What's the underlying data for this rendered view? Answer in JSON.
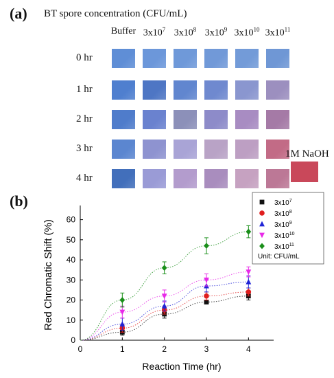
{
  "panel_a": {
    "label": "(a)",
    "title": "BT spore concentration (CFU/mL)",
    "columns": [
      {
        "base": "Buffer",
        "exp": ""
      },
      {
        "base": "3x10",
        "exp": "7"
      },
      {
        "base": "3x10",
        "exp": "8"
      },
      {
        "base": "3x10",
        "exp": "9"
      },
      {
        "base": "3x10",
        "exp": "10"
      },
      {
        "base": "3x10",
        "exp": "11"
      }
    ],
    "rows": [
      {
        "label": "0 hr",
        "colors": [
          "#5f8ed6",
          "#6c97da",
          "#6f99d9",
          "#7199d8",
          "#739bd8",
          "#6f97d5"
        ]
      },
      {
        "label": "1 hr",
        "colors": [
          "#4f7fcf",
          "#4e76c4",
          "#6186cf",
          "#6f89cf",
          "#8a96cf",
          "#9c8fbf"
        ]
      },
      {
        "label": "2 hr",
        "colors": [
          "#4f7ccb",
          "#6a82cf",
          "#8c90b9",
          "#8d8bc9",
          "#a88cc2",
          "#a57aa6"
        ]
      },
      {
        "label": "3 hr",
        "colors": [
          "#5b86d0",
          "#8e93d0",
          "#a9a4d6",
          "#b9a3c6",
          "#bd9fc3",
          "#c26b86"
        ]
      },
      {
        "label": "4 hr",
        "colors": [
          "#426fbb",
          "#9a9bd6",
          "#b39ccd",
          "#a98dbe",
          "#c6a2c1",
          "#bc7896"
        ]
      }
    ],
    "naoh": {
      "label": "1M NaOH",
      "color": "#c9485a"
    }
  },
  "panel_b": {
    "label": "(b)"
  },
  "chart_data": {
    "type": "scatter",
    "xlabel": "Reaction Time (hr)",
    "ylabel": "Red Chromatic Shift (%)",
    "xlim": [
      0,
      4.5
    ],
    "ylim": [
      0,
      65
    ],
    "xticks": [
      0,
      1,
      2,
      3,
      4
    ],
    "yticks": [
      0,
      10,
      20,
      30,
      40,
      50,
      60
    ],
    "grid": false,
    "legend_position": "top-right",
    "legend_note": "Unit: CFU/mL",
    "x": [
      0,
      1,
      2,
      3,
      4
    ],
    "series": [
      {
        "name": "3x10^7",
        "base": "3x10",
        "exp": "7",
        "marker": "square",
        "color": "#111111",
        "values": [
          0,
          4,
          13,
          19,
          22
        ],
        "errors": [
          0,
          1.5,
          2,
          1,
          2
        ]
      },
      {
        "name": "3x10^8",
        "base": "3x10",
        "exp": "8",
        "marker": "circle",
        "color": "#e01e1e",
        "values": [
          0,
          6,
          15,
          22,
          24
        ],
        "errors": [
          0,
          2,
          2,
          2,
          2
        ]
      },
      {
        "name": "3x10^9",
        "base": "3x10",
        "exp": "9",
        "marker": "triangle-up",
        "color": "#1f23d6",
        "values": [
          0,
          8,
          17,
          27,
          29
        ],
        "errors": [
          0,
          3,
          2.5,
          3,
          3
        ]
      },
      {
        "name": "3x10^10",
        "base": "3x10",
        "exp": "10",
        "marker": "triangle-down",
        "color": "#e829e8",
        "values": [
          0,
          14,
          22,
          30,
          34
        ],
        "errors": [
          0,
          3,
          3,
          3,
          2.5
        ]
      },
      {
        "name": "3x10^11",
        "base": "3x10",
        "exp": "11",
        "marker": "diamond",
        "color": "#1a8f1a",
        "values": [
          0,
          20,
          36,
          47,
          54
        ],
        "errors": [
          0,
          3.5,
          3,
          4,
          3
        ]
      }
    ]
  }
}
